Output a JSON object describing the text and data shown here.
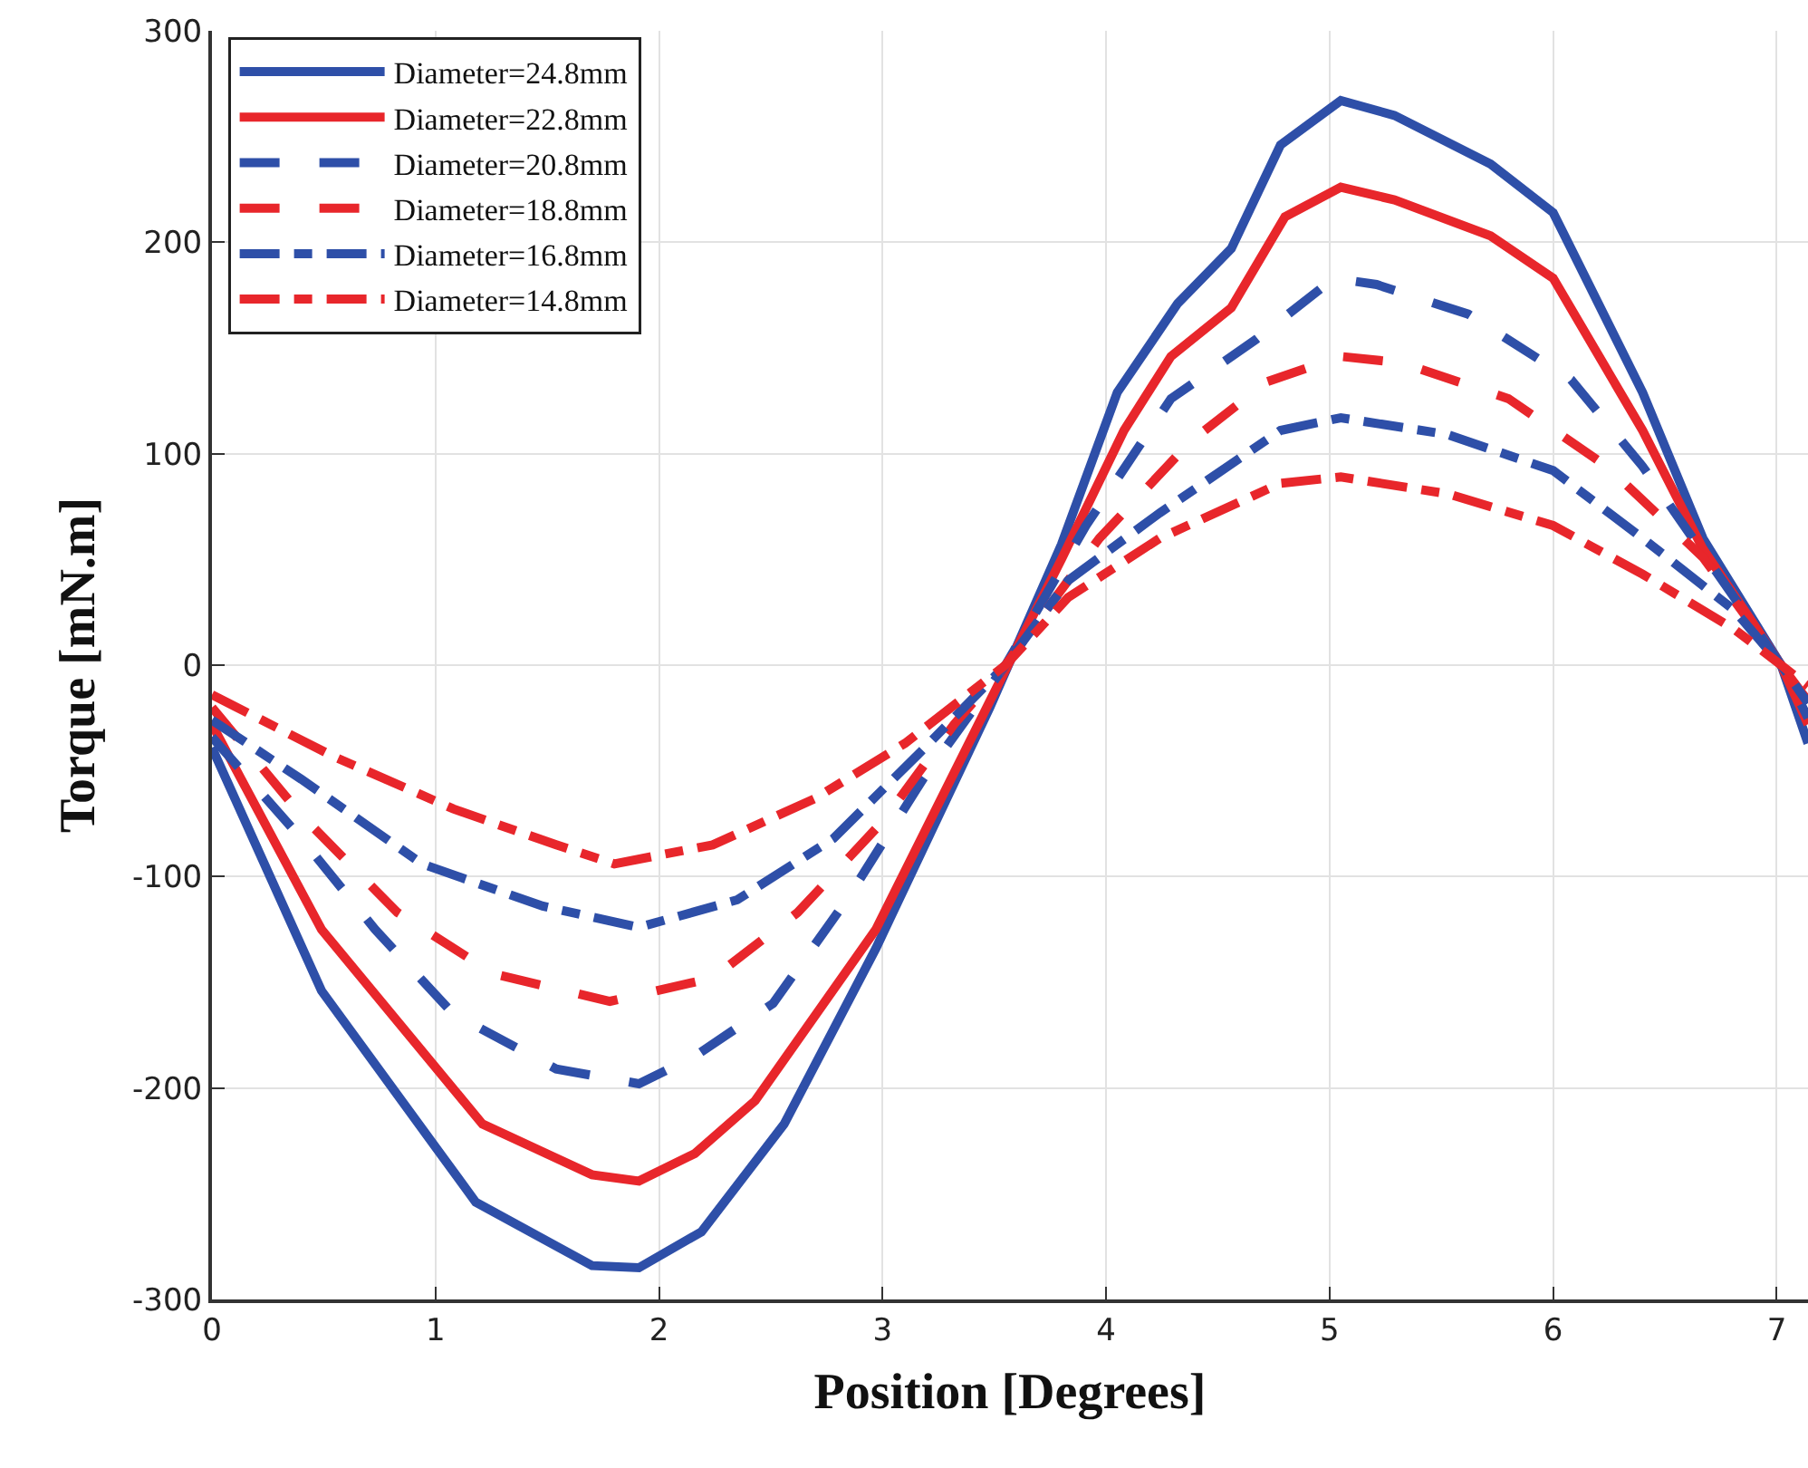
{
  "chart_data": {
    "type": "line",
    "xlabel": "Position [Degrees]",
    "ylabel": "Torque [mN.m]",
    "xlim": [
      0,
      7.14
    ],
    "ylim": [
      -300,
      300
    ],
    "xticks": [
      0,
      1,
      2,
      3,
      4,
      5,
      6,
      7
    ],
    "yticks": [
      -300,
      -200,
      -100,
      0,
      100,
      200,
      300
    ],
    "grid": true,
    "legend": "top left",
    "series": [
      {
        "name": "Diameter=24.8mm",
        "color": "#2e4fa8",
        "line_style": "solid",
        "x": [
          0,
          0.49,
          1.18,
          1.7,
          1.91,
          2.19,
          2.56,
          2.97,
          3.48,
          3.8,
          4.05,
          4.32,
          4.56,
          4.78,
          5.05,
          5.29,
          5.72,
          6.0,
          6.4,
          6.67,
          7.02,
          7.14
        ],
        "values": [
          -39,
          -154,
          -254,
          -284,
          -285,
          -268,
          -217,
          -134,
          -20,
          57,
          129,
          171,
          197,
          246,
          267,
          260,
          237,
          214,
          129,
          60,
          0,
          -37
        ]
      },
      {
        "name": "Diameter=22.8mm",
        "color": "#e8262b",
        "line_style": "solid",
        "x": [
          0,
          0.49,
          1.21,
          1.7,
          1.91,
          2.16,
          2.43,
          2.97,
          3.48,
          3.8,
          4.08,
          4.29,
          4.56,
          4.8,
          5.05,
          5.29,
          5.72,
          6.0,
          6.4,
          6.67,
          7.02,
          7.14
        ],
        "values": [
          -28,
          -125,
          -217,
          -241,
          -244,
          -231,
          -206,
          -125,
          -17,
          50,
          111,
          146,
          169,
          212,
          226,
          220,
          203,
          183,
          111,
          55,
          0,
          -28
        ]
      },
      {
        "name": "Diameter=20.8mm",
        "color": "#2e4fa8",
        "line_style": "dashed",
        "x": [
          0,
          0.4,
          0.73,
          1.08,
          1.54,
          1.91,
          2.16,
          2.51,
          2.84,
          3.18,
          3.55,
          3.91,
          4.29,
          4.67,
          5.02,
          5.21,
          5.62,
          6.08,
          6.4,
          6.81,
          7.02,
          7.14
        ],
        "values": [
          -34,
          -82,
          -125,
          -165,
          -191,
          -198,
          -185,
          -160,
          -111,
          -54,
          0,
          66,
          126,
          154,
          183,
          180,
          166,
          135,
          94,
          32,
          0,
          -25
        ]
      },
      {
        "name": "Diameter=18.8mm",
        "color": "#e8262b",
        "line_style": "dashed",
        "x": [
          0,
          0.4,
          0.83,
          1.26,
          1.78,
          2.24,
          2.62,
          3.0,
          3.32,
          3.55,
          3.97,
          4.38,
          4.72,
          5.05,
          5.32,
          5.8,
          6.24,
          6.67,
          7.02,
          7.14
        ],
        "values": [
          -20,
          -71,
          -117,
          -146,
          -159,
          -148,
          -117,
          -74,
          -28,
          0,
          60,
          106,
          134,
          146,
          143,
          126,
          94,
          51,
          0,
          -17
        ]
      },
      {
        "name": "Diameter=16.8mm",
        "color": "#2e4fa8",
        "line_style": "dashdot",
        "x": [
          0,
          0.4,
          0.94,
          1.48,
          1.91,
          2.35,
          2.78,
          3.18,
          3.55,
          3.83,
          4.24,
          4.78,
          5.05,
          5.53,
          6.0,
          6.4,
          6.81,
          7.02,
          7.14
        ],
        "values": [
          -26,
          -54,
          -94,
          -114,
          -124,
          -111,
          -82,
          -40,
          0,
          40,
          72,
          111,
          117,
          109,
          92,
          60,
          26,
          0,
          -18
        ]
      },
      {
        "name": "Diameter=14.8mm",
        "color": "#e8262b",
        "line_style": "dashdot",
        "x": [
          0,
          0.54,
          1.08,
          1.54,
          1.8,
          2.24,
          2.7,
          3.1,
          3.55,
          3.83,
          4.24,
          4.78,
          5.05,
          5.53,
          6.0,
          6.4,
          6.81,
          7.02,
          7.14
        ],
        "values": [
          -14,
          -43,
          -68,
          -85,
          -94,
          -85,
          -63,
          -37,
          0,
          32,
          60,
          86,
          89,
          81,
          66,
          43,
          17,
          0,
          -10
        ]
      }
    ]
  }
}
